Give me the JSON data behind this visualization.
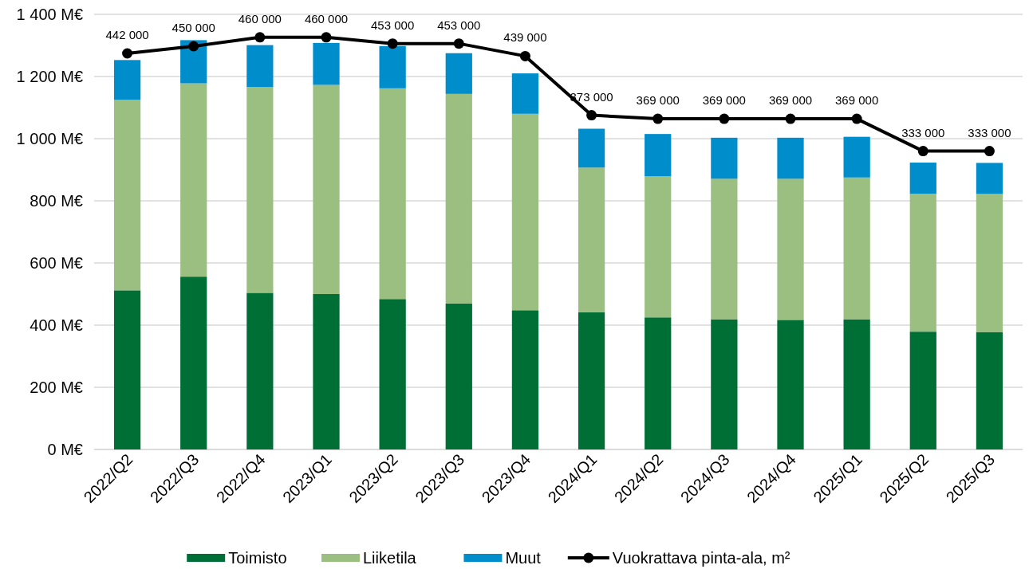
{
  "chart_data": {
    "type": "bar",
    "stacked": true,
    "categories": [
      "2022/Q2",
      "2022/Q3",
      "2022/Q4",
      "2023/Q1",
      "2023/Q2",
      "2023/Q3",
      "2023/Q4",
      "2024/Q1",
      "2024/Q2",
      "2024/Q3",
      "2024/Q4",
      "2025/Q1",
      "2025/Q2",
      "2025/Q3"
    ],
    "series": [
      {
        "name": "Toimisto",
        "color": "#006f35",
        "values": [
          512,
          556,
          504,
          500,
          484,
          470,
          448,
          442,
          425,
          419,
          417,
          419,
          379,
          378
        ]
      },
      {
        "name": "Liiketila",
        "color": "#9bbf80",
        "values": [
          613,
          622,
          662,
          673,
          678,
          674,
          632,
          465,
          454,
          452,
          454,
          456,
          444,
          444
        ]
      },
      {
        "name": "Muut",
        "color": "#008dcb",
        "values": [
          128,
          139,
          135,
          135,
          136,
          131,
          130,
          125,
          136,
          132,
          132,
          131,
          100,
          100
        ]
      },
      {
        "name": "Vuokrattava pinta-ala, m²",
        "type": "line",
        "axis": "y2",
        "color": "#000000",
        "marker": "circle",
        "line_style": "solid",
        "values": [
          442000,
          450000,
          460000,
          460000,
          453000,
          453000,
          439000,
          373000,
          369000,
          369000,
          369000,
          369000,
          333000,
          333000
        ],
        "value_labels": [
          "442 000",
          "450 000",
          "460 000",
          "460 000",
          "453 000",
          "453 000",
          "439 000",
          "373 000",
          "369 000",
          "369 000",
          "369 000",
          "369 000",
          "333 000",
          "333 000"
        ]
      }
    ],
    "ylim": [
      0,
      1400
    ],
    "yticks": [
      {
        "value": 0,
        "label": "0 M€"
      },
      {
        "value": 200,
        "label": "200 M€"
      },
      {
        "value": 400,
        "label": "400 M€"
      },
      {
        "value": 600,
        "label": "600 M€"
      },
      {
        "value": 800,
        "label": "800 M€"
      },
      {
        "value": 1000,
        "label": "1 000 M€"
      },
      {
        "value": 1200,
        "label": "1 200 M€"
      },
      {
        "value": 1400,
        "label": "1 400 M€"
      }
    ],
    "y2lim": [
      0,
      485600
    ],
    "grid": "y",
    "legend": "bottom"
  }
}
